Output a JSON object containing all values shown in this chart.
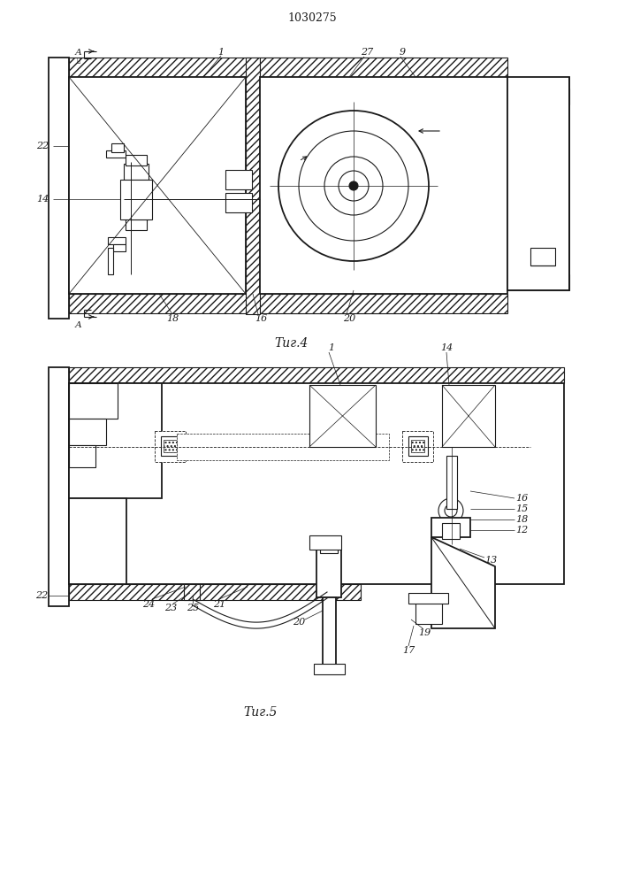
{
  "title": "1030275",
  "fig4_caption": "Τиг.4",
  "fig5_caption": "Τиг.5",
  "bg_color": "#ffffff",
  "lc": "#1a1a1a",
  "lw": 0.8,
  "lw2": 1.3
}
